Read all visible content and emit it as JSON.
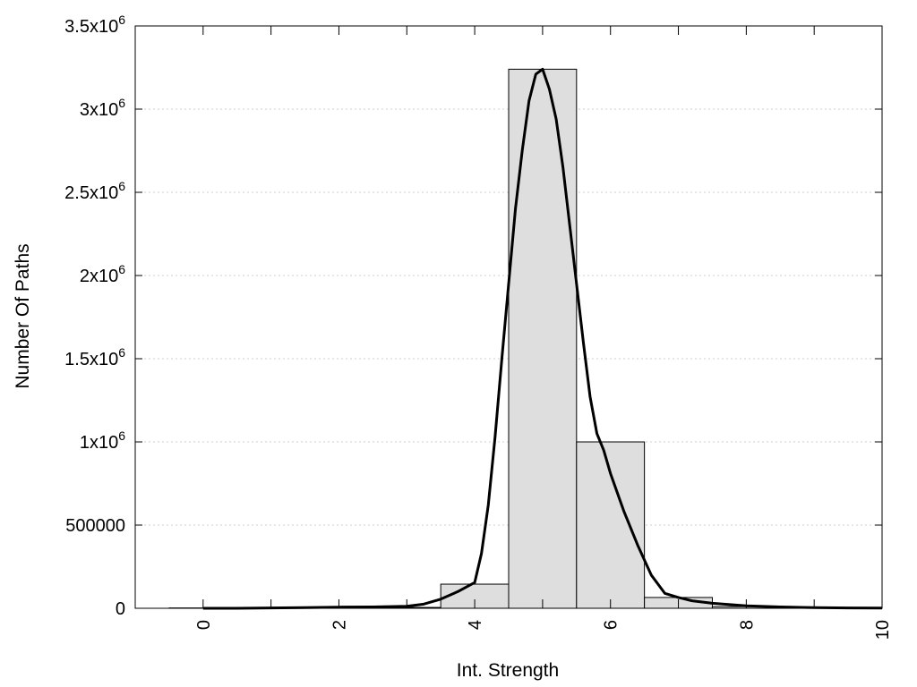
{
  "chart_data": {
    "type": "bar",
    "title": "",
    "xlabel": "Int. Strength",
    "ylabel": "Number Of Paths",
    "xlim": [
      -1,
      10
    ],
    "ylim": [
      0,
      3500000
    ],
    "grid": "horizontal dotted",
    "legend": "none",
    "x_ticks": [
      {
        "value": 0,
        "label": "0"
      },
      {
        "value": 2,
        "label": "2"
      },
      {
        "value": 4,
        "label": "4"
      },
      {
        "value": 6,
        "label": "6"
      },
      {
        "value": 8,
        "label": "8"
      },
      {
        "value": 10,
        "label": "10"
      }
    ],
    "y_ticks": [
      {
        "value": 0,
        "label": "0",
        "sup": ""
      },
      {
        "value": 500000,
        "label": "500000",
        "sup": ""
      },
      {
        "value": 1000000,
        "label": "1x10",
        "sup": "6"
      },
      {
        "value": 1500000,
        "label": "1.5x10",
        "sup": "6"
      },
      {
        "value": 2000000,
        "label": "2x10",
        "sup": "6"
      },
      {
        "value": 2500000,
        "label": "2.5x10",
        "sup": "6"
      },
      {
        "value": 3000000,
        "label": "3x10",
        "sup": "6"
      },
      {
        "value": 3500000,
        "label": "3.5x10",
        "sup": "6"
      }
    ],
    "bars": [
      {
        "x": 0,
        "value": 2000
      },
      {
        "x": 1,
        "value": 2000
      },
      {
        "x": 2,
        "value": 3000
      },
      {
        "x": 3,
        "value": 5000
      },
      {
        "x": 4,
        "value": 145000
      },
      {
        "x": 5,
        "value": 3240000
      },
      {
        "x": 6,
        "value": 1000000
      },
      {
        "x": 7,
        "value": 65000
      },
      {
        "x": 8,
        "value": 10000
      },
      {
        "x": 9,
        "value": 4000
      }
    ],
    "bar_width": 1,
    "series": [
      {
        "type": "line",
        "x": [
          0,
          0.5,
          1,
          1.5,
          2,
          2.5,
          3,
          3.25,
          3.5,
          3.75,
          4,
          4.1,
          4.2,
          4.3,
          4.4,
          4.5,
          4.6,
          4.7,
          4.8,
          4.9,
          5,
          5.1,
          5.2,
          5.3,
          5.4,
          5.5,
          5.6,
          5.7,
          5.8,
          5.9,
          6,
          6.2,
          6.4,
          6.6,
          6.8,
          7,
          7.2,
          7.5,
          8,
          8.5,
          9,
          9.5,
          10
        ],
        "y": [
          0,
          0,
          2000,
          4000,
          7000,
          8000,
          12000,
          25000,
          55000,
          100000,
          155000,
          330000,
          620000,
          1030000,
          1500000,
          1950000,
          2400000,
          2750000,
          3050000,
          3210000,
          3240000,
          3120000,
          2940000,
          2650000,
          2300000,
          1950000,
          1600000,
          1270000,
          1050000,
          950000,
          810000,
          580000,
          380000,
          200000,
          90000,
          65000,
          45000,
          30000,
          15000,
          8000,
          4000,
          2000,
          1000
        ]
      }
    ],
    "colors": {
      "bar_fill": "#dedede",
      "bar_edge": "#000000",
      "curve": "#000000",
      "grid": "#cfcfcf"
    }
  }
}
